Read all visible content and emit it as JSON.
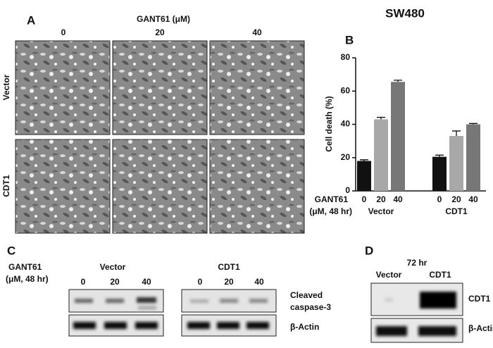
{
  "panel_a": {
    "label": "A",
    "title": "GANT61 (μM)",
    "columns": [
      "0",
      "20",
      "40"
    ],
    "rows": [
      "Vector",
      "CDT1"
    ]
  },
  "chart_data": {
    "type": "bar",
    "title": "SW480",
    "panel_label": "B",
    "y_label": "Cell death (%)",
    "x_label_lines": [
      "GANT61",
      "(μM, 48 hr)"
    ],
    "categories": [
      "Vector",
      "CDT1"
    ],
    "series": [
      {
        "name": "0",
        "color": "#111111",
        "values": [
          18,
          20.5
        ],
        "errors": [
          0.7,
          1
        ]
      },
      {
        "name": "20",
        "color": "#a8a8a8",
        "values": [
          43,
          33
        ],
        "errors": [
          1.2,
          3
        ]
      },
      {
        "name": "40",
        "color": "#777777",
        "values": [
          65.5,
          40
        ],
        "errors": [
          1,
          0.5
        ]
      }
    ],
    "ylim": [
      0,
      80
    ],
    "yticks": [
      0,
      20,
      40,
      60,
      80
    ]
  },
  "panel_c": {
    "label": "C",
    "treatment_lines": [
      "GANT61",
      "(μM, 48 hr)"
    ],
    "groups": [
      {
        "name": "Vector",
        "doses": [
          "0",
          "20",
          "40"
        ]
      },
      {
        "name": "CDT1",
        "doses": [
          "0",
          "20",
          "40"
        ]
      }
    ],
    "bands": [
      [
        "Cleaved",
        "caspase-3"
      ],
      [
        "β-Actin"
      ]
    ]
  },
  "panel_d": {
    "label": "D",
    "time": "72 hr",
    "lanes": [
      "Vector",
      "CDT1"
    ],
    "bands": [
      "CDT1",
      "β-Actin"
    ]
  }
}
